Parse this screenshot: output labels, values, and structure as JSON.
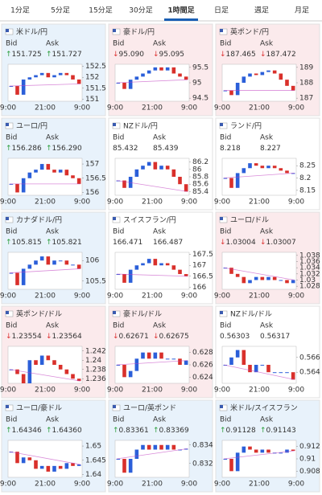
{
  "tabs": [
    "1分足",
    "5分足",
    "15分足",
    "30分足",
    "1時間足",
    "日足",
    "週足",
    "月足"
  ],
  "active_tab": 4,
  "time_labels": [
    "9:00",
    "21:00",
    "9:00"
  ],
  "bid_label": "Bid",
  "ask_label": "Ask",
  "panels": [
    {
      "name": "米ドル/円",
      "trend": "up",
      "arrow": "↑",
      "bid": "151.725",
      "ask": "151.727",
      "ylim": [
        150.9,
        152.6
      ],
      "yticks": [
        152.5,
        152,
        151.5,
        151
      ],
      "closes": [
        151.6,
        151.2,
        151.9,
        152.0,
        152.1,
        152.2,
        152.0,
        152.1,
        152.2,
        152.1,
        151.9,
        151.7
      ]
    },
    {
      "name": "豪ドル/円",
      "trend": "down",
      "arrow": "↓",
      "bid": "95.090",
      "ask": "95.095",
      "ylim": [
        94.4,
        95.6
      ],
      "yticks": [
        95.5,
        95,
        94.5
      ],
      "closes": [
        95.0,
        94.8,
        95.1,
        95.2,
        95.3,
        95.4,
        95.5,
        95.4,
        95.5,
        95.3,
        95.2,
        95.1
      ]
    },
    {
      "name": "英ポンド/円",
      "trend": "down",
      "arrow": "↓",
      "bid": "187.465",
      "ask": "187.472",
      "ylim": [
        186.8,
        189.2
      ],
      "yticks": [
        189,
        188,
        187
      ],
      "closes": [
        187.5,
        187.2,
        188.0,
        188.4,
        188.6,
        188.5,
        188.7,
        188.8,
        188.6,
        188.2,
        187.8,
        187.5
      ]
    },
    {
      "name": "ユーロ/円",
      "trend": "up",
      "arrow": "↑",
      "bid": "156.286",
      "ask": "156.290",
      "ylim": [
        155.9,
        157.2
      ],
      "yticks": [
        157,
        156.5,
        156
      ],
      "closes": [
        156.3,
        156.0,
        156.5,
        156.7,
        156.8,
        157.0,
        156.8,
        156.7,
        156.8,
        156.6,
        156.5,
        156.3
      ]
    },
    {
      "name": "NZドル/円",
      "trend": "flat",
      "arrow": "",
      "bid": "85.432",
      "ask": "85.439",
      "ylim": [
        85.3,
        86.3
      ],
      "yticks": [
        86.2,
        86,
        85.8,
        85.6,
        85.4
      ],
      "closes": [
        85.7,
        85.5,
        85.8,
        86.0,
        86.1,
        86.2,
        86.0,
        86.1,
        86.0,
        85.8,
        85.6,
        85.4
      ]
    },
    {
      "name": "ランド/円",
      "trend": "flat",
      "arrow": "",
      "bid": "8.218",
      "ask": "8.227",
      "ylim": [
        8.13,
        8.28
      ],
      "yticks": [
        8.25,
        8.2,
        8.15
      ],
      "closes": [
        8.2,
        8.16,
        8.22,
        8.24,
        8.26,
        8.25,
        8.24,
        8.25,
        8.24,
        8.23,
        8.22,
        8.22
      ]
    },
    {
      "name": "カナダドル/円",
      "trend": "up",
      "arrow": "↑",
      "bid": "105.815",
      "ask": "105.821",
      "ylim": [
        105.3,
        106.2
      ],
      "yticks": [
        106,
        105.5
      ],
      "closes": [
        105.7,
        105.4,
        105.8,
        105.9,
        106.0,
        106.1,
        105.9,
        106.0,
        106.0,
        105.9,
        105.9,
        105.8
      ]
    },
    {
      "name": "スイスフラン/円",
      "trend": "flat",
      "arrow": "",
      "bid": "166.471",
      "ask": "166.487",
      "ylim": [
        165.9,
        167.6
      ],
      "yticks": [
        167.5,
        167,
        166.5,
        166
      ],
      "closes": [
        166.6,
        166.2,
        166.8,
        167.0,
        167.1,
        167.3,
        167.0,
        167.1,
        167.0,
        166.8,
        166.6,
        166.5
      ]
    },
    {
      "name": "ユーロ/ドル",
      "trend": "down",
      "arrow": "↓",
      "bid": "1.03004",
      "ask": "1.03007",
      "ylim": [
        1.027,
        1.039
      ],
      "yticks": [
        1.038,
        1.036,
        1.034,
        1.032,
        1.03,
        1.028
      ],
      "closes": [
        1.034,
        1.032,
        1.031,
        1.029,
        1.03,
        1.031,
        1.03,
        1.031,
        1.03,
        1.03,
        1.029,
        1.03
      ]
    },
    {
      "name": "英ポンド/ドル",
      "trend": "down",
      "arrow": "↓",
      "bid": "1.23554",
      "ask": "1.23564",
      "ylim": [
        1.235,
        1.243
      ],
      "yticks": [
        1.242,
        1.24,
        1.238,
        1.236
      ],
      "closes": [
        1.238,
        1.237,
        1.235,
        1.24,
        1.239,
        1.241,
        1.24,
        1.239,
        1.238,
        1.237,
        1.236,
        1.2355
      ]
    },
    {
      "name": "豪ドル/ドル",
      "trend": "down",
      "arrow": "↓",
      "bid": "0.62671",
      "ask": "0.62675",
      "ylim": [
        0.623,
        0.629
      ],
      "yticks": [
        0.628,
        0.626,
        0.624
      ],
      "closes": [
        0.626,
        0.624,
        0.625,
        0.627,
        0.628,
        0.627,
        0.628,
        0.627,
        0.627,
        0.627,
        0.626,
        0.6267
      ]
    },
    {
      "name": "NZドル/ドル",
      "trend": "flat",
      "arrow": "",
      "bid": "0.56303",
      "ask": "0.56317",
      "ylim": [
        0.5625,
        0.5675
      ],
      "yticks": [
        0.566,
        0.564
      ],
      "closes": [
        0.565,
        0.566,
        0.567,
        0.565,
        0.564,
        0.565,
        0.565,
        0.564,
        0.564,
        0.564,
        0.564,
        0.563
      ]
    },
    {
      "name": "ユーロ/豪ドル",
      "trend": "up",
      "arrow": "↑",
      "bid": "1.64346",
      "ask": "1.64360",
      "ylim": [
        1.639,
        1.652
      ],
      "yticks": [
        1.65,
        1.645,
        1.64
      ],
      "closes": [
        1.648,
        1.644,
        1.646,
        1.645,
        1.642,
        1.643,
        1.641,
        1.643,
        1.642,
        1.644,
        1.643,
        1.6435
      ]
    },
    {
      "name": "ユーロ/英ポンド",
      "trend": "up",
      "arrow": "↑",
      "bid": "0.83361",
      "ask": "0.83369",
      "ylim": [
        0.8305,
        0.8345
      ],
      "yticks": [
        0.834,
        0.832
      ],
      "closes": [
        0.8325,
        0.831,
        0.8325,
        0.8335,
        0.834,
        0.8335,
        0.834,
        0.8335,
        0.834,
        0.8335,
        0.8335,
        0.8336
      ]
    },
    {
      "name": "米ドル/スイスフラン",
      "trend": "up",
      "arrow": "↑",
      "bid": "0.91128",
      "ask": "0.91143",
      "ylim": [
        0.907,
        0.913
      ],
      "yticks": [
        0.912,
        0.91,
        0.908
      ],
      "closes": [
        0.91,
        0.908,
        0.911,
        0.912,
        0.9115,
        0.911,
        0.9115,
        0.911,
        0.911,
        0.911,
        0.9115,
        0.9113
      ]
    }
  ]
}
